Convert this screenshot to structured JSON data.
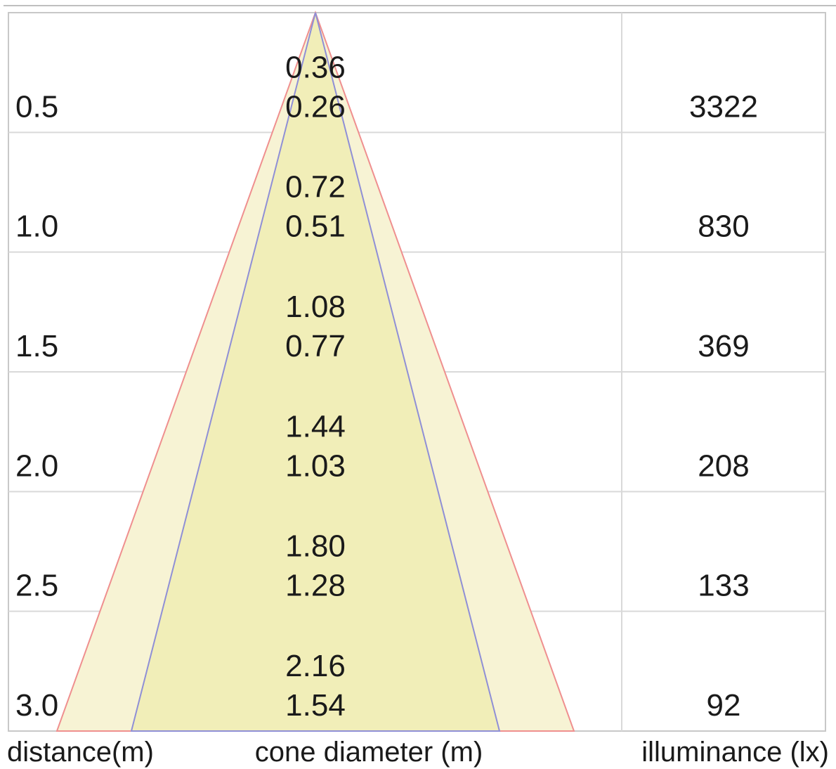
{
  "chart_data": {
    "type": "table",
    "columns": {
      "distance": "distance(m)",
      "cone": "cone diameter (m)",
      "illuminance": "illuminance (lx)"
    },
    "rows": [
      {
        "distance": "0.5",
        "outer": "0.36",
        "inner": "0.26",
        "lux": "3322"
      },
      {
        "distance": "1.0",
        "outer": "0.72",
        "inner": "0.51",
        "lux": "830"
      },
      {
        "distance": "1.5",
        "outer": "1.08",
        "inner": "0.77",
        "lux": "369"
      },
      {
        "distance": "2.0",
        "outer": "1.44",
        "inner": "1.03",
        "lux": "208"
      },
      {
        "distance": "2.5",
        "outer": "1.80",
        "inner": "1.28",
        "lux": "133"
      },
      {
        "distance": "3.0",
        "outer": "2.16",
        "inner": "1.54",
        "lux": "92"
      }
    ],
    "colors": {
      "outer_fill": "#f7f3d4",
      "inner_fill": "#f1eeb8",
      "outer_edge": "#ef8f8f",
      "inner_edge": "#8f8fd6",
      "grid": "#d9d9d9"
    }
  }
}
